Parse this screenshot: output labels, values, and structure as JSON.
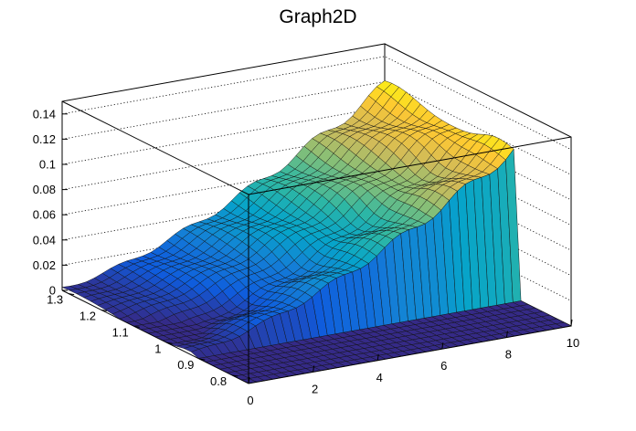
{
  "chart_data": {
    "type": "surface",
    "title": "Graph2D",
    "xlabel": "",
    "ylabel": "",
    "zlabel": "",
    "x_ticks": [
      "0",
      "2",
      "4",
      "6",
      "8",
      "10"
    ],
    "y_ticks": [
      "0.8",
      "0.9",
      "1",
      "1.1",
      "1.2",
      "1.3"
    ],
    "z_ticks": [
      "0",
      "0.02",
      "0.04",
      "0.06",
      "0.08",
      "0.1",
      "0.12",
      "0.14"
    ],
    "xlim": [
      0,
      10
    ],
    "ylim": [
      0.75,
      1.32
    ],
    "zlim": [
      0,
      0.15
    ],
    "grid": true,
    "palette": "kBird",
    "colors": [
      "#352a87",
      "#0f5cdd",
      "#1481d6",
      "#06a4ca",
      "#2eb7a4",
      "#87bf77",
      "#d1bb59",
      "#fec832",
      "#f9fb0e"
    ],
    "surface": {
      "shape": "z falls to 0 for y below about 0.92; above it z rises with x from about 0.002 at x=0 to about 0.117 at x=10, with a slight dip near y=1.05",
      "x_range": [
        0,
        10
      ],
      "y_cut": 0.92,
      "z_at_x0": 0.002,
      "z_at_x10": 0.117
    }
  }
}
